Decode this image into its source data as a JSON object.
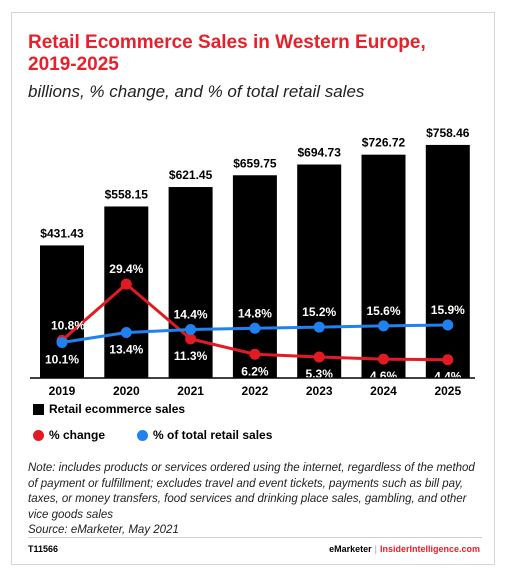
{
  "header": {
    "title": "Retail Ecommerce Sales in Western Europe, 2019-2025",
    "subtitle": "billions, % change, and % of total retail sales"
  },
  "colors": {
    "bar": "#000000",
    "change": "#e21b23",
    "share": "#1f82f0",
    "title": "#e8202a"
  },
  "chart_data": {
    "type": "bar",
    "categories": [
      "2019",
      "2020",
      "2021",
      "2022",
      "2023",
      "2024",
      "2025"
    ],
    "series": [
      {
        "name": "Retail ecommerce sales",
        "type": "bar",
        "values": [
          431.43,
          558.15,
          621.45,
          659.75,
          694.73,
          726.72,
          758.46
        ],
        "labels": [
          "$431.43",
          "$558.15",
          "$621.45",
          "$659.75",
          "$694.73",
          "$726.72",
          "$758.46"
        ]
      },
      {
        "name": "% change",
        "type": "line",
        "values": [
          10.8,
          29.4,
          11.3,
          6.2,
          5.3,
          4.6,
          4.4
        ],
        "labels": [
          "10.8%",
          "29.4%",
          "11.3%",
          "6.2%",
          "5.3%",
          "4.6%",
          "4.4%"
        ]
      },
      {
        "name": "% of total retail sales",
        "type": "line",
        "values": [
          10.1,
          13.4,
          14.4,
          14.8,
          15.2,
          15.6,
          15.9
        ],
        "labels": [
          "10.1%",
          "13.4%",
          "14.4%",
          "14.8%",
          "15.2%",
          "15.6%",
          "15.9%"
        ]
      }
    ],
    "grid": false,
    "legend": "bottom-left"
  },
  "legend": {
    "bar": "Retail ecommerce sales",
    "change": "% change",
    "share": "% of total retail sales"
  },
  "note": {
    "text": "Note: includes products or services ordered using the internet, regardless of the method of payment or fulfillment; excludes travel and event tickets, payments such as bill pay, taxes, or money transfers, food services and drinking place sales, gambling, and other vice goods sales",
    "source": "Source: eMarketer, May 2021"
  },
  "footer": {
    "id": "T11566",
    "brand": "eMarketer",
    "separator": "|",
    "brand2": "InsiderIntelligence.com"
  }
}
